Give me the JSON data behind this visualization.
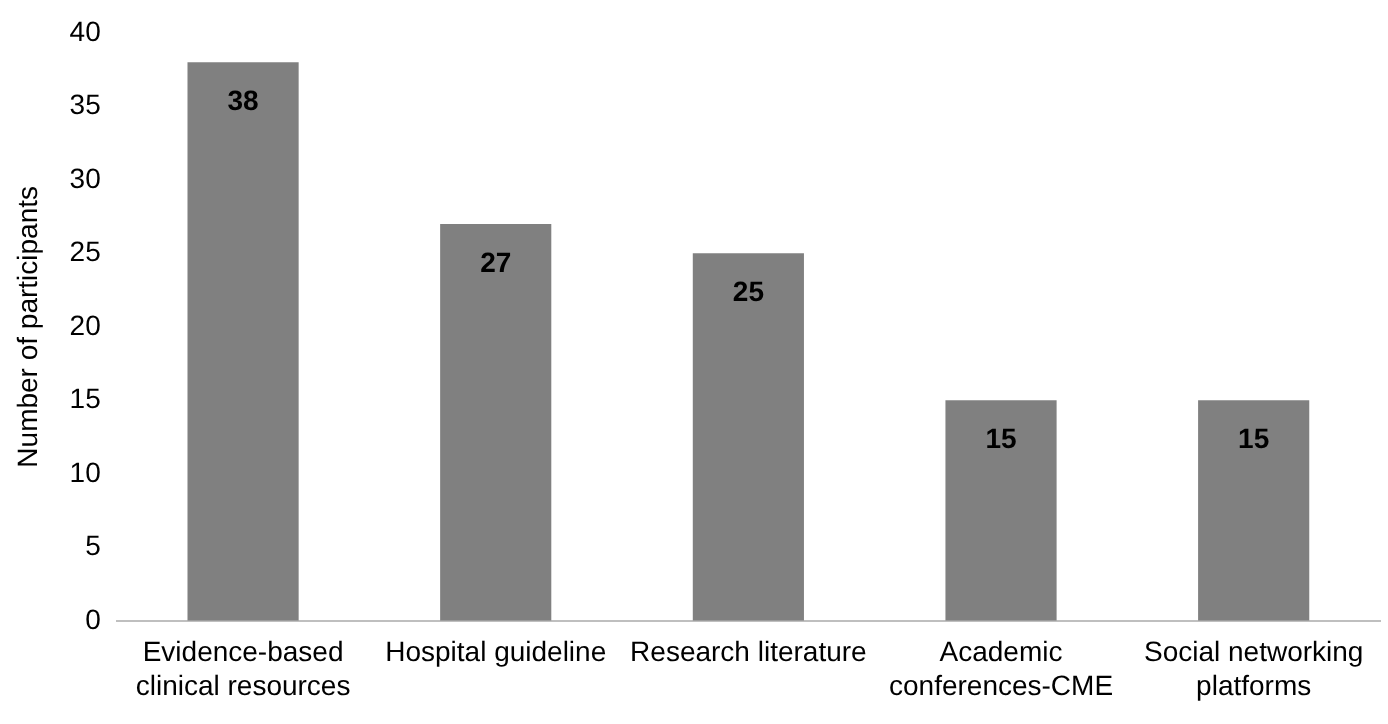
{
  "chart_data": {
    "type": "bar",
    "ylabel": "Number of participants",
    "categories": [
      "Evidence-based clinical resources",
      "Hospital guideline",
      "Research literature",
      "Academic conferences-CME",
      "Social networking platforms"
    ],
    "values": [
      38,
      27,
      25,
      15,
      15
    ],
    "color": "#808080",
    "ylim": [
      0,
      40
    ],
    "yticks": [
      0,
      5,
      10,
      15,
      20,
      25,
      30,
      35,
      40
    ],
    "grid": false,
    "legend": false,
    "data_labels": true
  }
}
